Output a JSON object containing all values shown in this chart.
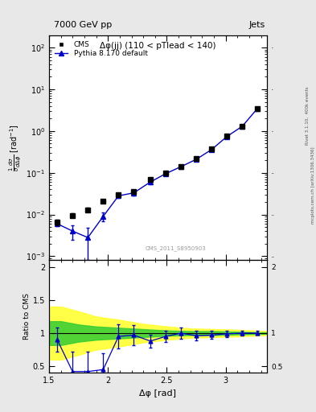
{
  "title_left": "7000 GeV pp",
  "title_right": "Jets",
  "annotation": "Δφ(jj) (110 < pTlead < 140)",
  "watermark": "CMS_2011_S8950903",
  "right_label1": "Rivet 3.1.10,  400k events",
  "right_label2": "mcplots.cern.ch [arXiv:1306.3436]",
  "ylabel_ratio": "Ratio to CMS",
  "xlabel": "Δφ [rad]",
  "xlim": [
    1.5,
    3.35
  ],
  "ylim_main": [
    0.0008,
    200.0
  ],
  "ylim_ratio": [
    0.4,
    2.1
  ],
  "cms_x": [
    1.57,
    1.7,
    1.83,
    1.96,
    2.09,
    2.22,
    2.36,
    2.49,
    2.62,
    2.75,
    2.88,
    3.01,
    3.14,
    3.27
  ],
  "cms_y": [
    0.0065,
    0.0095,
    0.013,
    0.021,
    0.03,
    0.035,
    0.068,
    0.1,
    0.14,
    0.22,
    0.37,
    0.75,
    1.3,
    3.5
  ],
  "cms_yerr": [
    0.0009,
    0.001,
    0.0015,
    0.002,
    0.003,
    0.004,
    0.006,
    0.009,
    0.012,
    0.018,
    0.03,
    0.06,
    0.1,
    0.25
  ],
  "pythia_x": [
    1.57,
    1.7,
    1.83,
    1.96,
    2.09,
    2.22,
    2.36,
    2.49,
    2.62,
    2.75,
    2.88,
    3.01,
    3.14,
    3.27
  ],
  "pythia_y": [
    0.006,
    0.004,
    0.0028,
    0.009,
    0.028,
    0.033,
    0.06,
    0.095,
    0.14,
    0.21,
    0.36,
    0.74,
    1.3,
    3.5
  ],
  "pythia_yerr": [
    0.0007,
    0.0015,
    0.002,
    0.002,
    0.003,
    0.004,
    0.006,
    0.009,
    0.012,
    0.018,
    0.03,
    0.06,
    0.1,
    0.25
  ],
  "ratio_x": [
    1.57,
    1.7,
    1.83,
    1.96,
    2.09,
    2.22,
    2.36,
    2.49,
    2.62,
    2.75,
    2.88,
    3.01,
    3.14,
    3.27
  ],
  "ratio_y": [
    0.9,
    0.42,
    0.42,
    0.45,
    0.95,
    0.97,
    0.88,
    0.95,
    1.0,
    0.96,
    0.97,
    0.99,
    1.0,
    1.0
  ],
  "ratio_yerr": [
    0.18,
    0.3,
    0.3,
    0.25,
    0.18,
    0.15,
    0.1,
    0.09,
    0.08,
    0.07,
    0.06,
    0.05,
    0.04,
    0.03
  ],
  "green_band_x": [
    1.5,
    1.6,
    1.75,
    1.9,
    2.1,
    2.3,
    2.5,
    2.7,
    2.9,
    3.1,
    3.35
  ],
  "green_band_lo": [
    0.82,
    0.82,
    0.87,
    0.9,
    0.92,
    0.94,
    0.96,
    0.97,
    0.97,
    0.98,
    0.99
  ],
  "green_band_hi": [
    1.18,
    1.18,
    1.13,
    1.1,
    1.08,
    1.06,
    1.04,
    1.03,
    1.03,
    1.02,
    1.01
  ],
  "yellow_band_x": [
    1.5,
    1.6,
    1.75,
    1.9,
    2.1,
    2.3,
    2.5,
    2.7,
    2.9,
    3.1,
    3.35
  ],
  "yellow_band_lo": [
    0.6,
    0.6,
    0.67,
    0.75,
    0.8,
    0.86,
    0.9,
    0.93,
    0.94,
    0.95,
    0.97
  ],
  "yellow_band_hi": [
    1.4,
    1.4,
    1.33,
    1.25,
    1.2,
    1.14,
    1.1,
    1.07,
    1.06,
    1.05,
    1.03
  ],
  "cms_color": "black",
  "pythia_color": "#0000cc",
  "bg_color": "#e8e8e8",
  "plot_bg": "#ffffff"
}
